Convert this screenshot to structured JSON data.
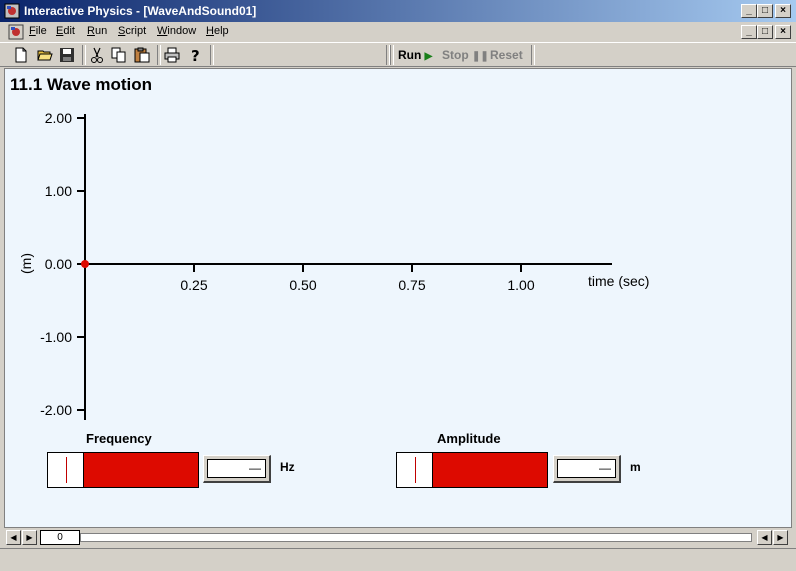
{
  "window": {
    "title": "Interactive Physics - [WaveAndSound01]",
    "minimize_glyph": "_",
    "maximize_glyph": "□",
    "close_glyph": "×"
  },
  "menu": [
    {
      "label": "File"
    },
    {
      "label": "Edit"
    },
    {
      "label": "Run"
    },
    {
      "label": "Script"
    },
    {
      "label": "Window"
    },
    {
      "label": "Help"
    }
  ],
  "toolbar": {
    "icons": [
      "new-file-icon",
      "open-folder-icon",
      "save-disk-icon",
      "cut-scissors-icon",
      "copy-icon",
      "paste-icon",
      "print-icon",
      "help-icon"
    ],
    "run_label": "Run",
    "stop_label": "Stop",
    "reset_label": "Reset",
    "run_color": "#1a7f1a",
    "disabled_color": "#808080"
  },
  "page": {
    "title": "11.1 Wave motion"
  },
  "chart_data": {
    "type": "line",
    "x_ticks": [
      "0.25",
      "0.50",
      "0.75",
      "1.00"
    ],
    "x_tick_values": [
      0.25,
      0.5,
      0.75,
      1.0
    ],
    "y_ticks": [
      "2.00",
      "1.00",
      "0.00",
      "-1.00",
      "-2.00"
    ],
    "y_tick_values": [
      2.0,
      1.0,
      0.0,
      -1.0,
      -2.0
    ],
    "xlabel": "time (sec)",
    "ylabel": "(m)",
    "xlim": [
      0,
      1.2
    ],
    "ylim": [
      -2.0,
      2.0
    ],
    "series": [
      {
        "x": [
          0
        ],
        "y": [
          0
        ],
        "color": "#dd0a00"
      }
    ]
  },
  "controls": {
    "frequency": {
      "label": "Frequency",
      "unit": "Hz",
      "value_text": "—",
      "thumb_fraction": 0.12,
      "fill_fraction": 0.76
    },
    "amplitude": {
      "label": "Amplitude",
      "unit": "m",
      "value_text": "—",
      "thumb_fraction": 0.12,
      "fill_fraction": 0.76
    }
  },
  "playback": {
    "frame_counter": "0"
  }
}
